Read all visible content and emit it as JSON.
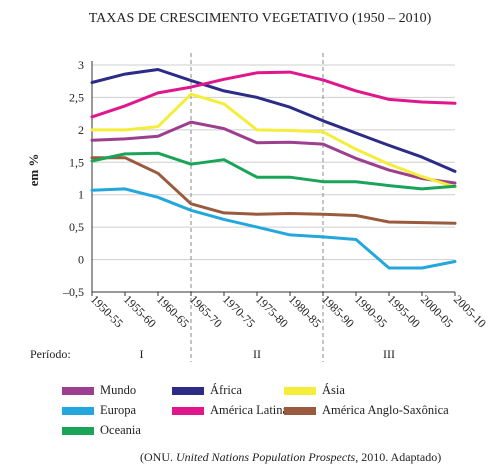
{
  "chart_data": {
    "type": "line",
    "title": "TAXAS DE CRESCIMENTO VEGETATIVO (1950 – 2010)",
    "ylabel": "em %",
    "xlabel": "",
    "ylim": [
      -0.5,
      3
    ],
    "y_ticks": [
      "–0,5",
      "0",
      "0,5",
      "1",
      "1,5",
      "2",
      "2,5",
      "3"
    ],
    "y_tick_values": [
      -0.5,
      0,
      0.5,
      1,
      1.5,
      2,
      2.5,
      3
    ],
    "categories": [
      "1950-55",
      "1955-60",
      "1960-65",
      "1965-70",
      "1970-75",
      "1975-80",
      "1980-85",
      "1985-90",
      "1990-95",
      "1995-00",
      "2000-05",
      "2005-10"
    ],
    "grid": true,
    "period_label": "Período:",
    "periods": [
      {
        "label": "I",
        "start": "1950-55",
        "end": "1965-70"
      },
      {
        "label": "II",
        "start": "1965-70",
        "end": "1985-90"
      },
      {
        "label": "III",
        "start": "1985-90",
        "end": "2005-10"
      }
    ],
    "series": [
      {
        "name": "Mundo",
        "color": "#9c3f8e",
        "values": [
          1.84,
          1.86,
          1.9,
          2.12,
          2.02,
          1.8,
          1.81,
          1.78,
          1.56,
          1.38,
          1.25,
          1.18
        ]
      },
      {
        "name": "África",
        "color": "#2d2b88",
        "values": [
          2.73,
          2.86,
          2.93,
          2.76,
          2.6,
          2.5,
          2.35,
          2.14,
          1.95,
          1.76,
          1.58,
          1.36
        ]
      },
      {
        "name": "Ásia",
        "color": "#f4ee3a",
        "values": [
          2.0,
          2.0,
          2.05,
          2.55,
          2.4,
          2.0,
          1.99,
          1.97,
          1.7,
          1.47,
          1.28,
          1.12
        ]
      },
      {
        "name": "Europa",
        "color": "#23a7dc",
        "values": [
          1.07,
          1.09,
          0.96,
          0.76,
          0.62,
          0.5,
          0.38,
          0.35,
          0.31,
          -0.13,
          -0.13,
          -0.03
        ]
      },
      {
        "name": "América Latina",
        "color": "#e0178c",
        "values": [
          2.2,
          2.37,
          2.57,
          2.66,
          2.78,
          2.88,
          2.89,
          2.77,
          2.6,
          2.47,
          2.43,
          2.41
        ]
      },
      {
        "name": "América Anglo-Saxônica",
        "color": "#9a5a3e",
        "values": [
          1.57,
          1.57,
          1.33,
          0.86,
          0.72,
          0.7,
          0.71,
          0.7,
          0.68,
          0.58,
          0.57,
          0.56
        ]
      },
      {
        "name": "Oceania",
        "color": "#1aa458",
        "values": [
          1.52,
          1.63,
          1.64,
          1.47,
          1.54,
          1.27,
          1.27,
          1.2,
          1.2,
          1.14,
          1.09,
          1.13
        ]
      }
    ],
    "legend_placement": "bottom"
  },
  "source": {
    "prefix": "(ONU. ",
    "title": "United Nations Population Prospects",
    "suffix": ", 2010. Adaptado)"
  }
}
